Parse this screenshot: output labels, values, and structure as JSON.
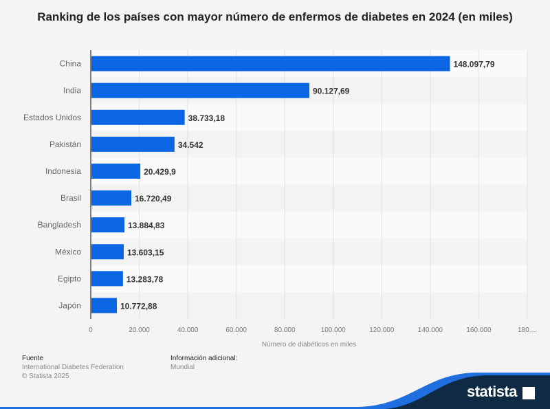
{
  "chart_data": {
    "type": "bar",
    "orientation": "horizontal",
    "title": "Ranking de los países con mayor número de enfermos de diabetes en 2024 (en miles)",
    "xlabel": "Número de diabéticos en miles",
    "ylabel": "",
    "categories": [
      "China",
      "India",
      "Estados Unidos",
      "Pakistán",
      "Indonesia",
      "Brasil",
      "Bangladesh",
      "México",
      "Egipto",
      "Japón"
    ],
    "values": [
      148097.79,
      90127.69,
      38733.18,
      34542,
      20429.9,
      16720.49,
      13884.83,
      13603.15,
      13283.78,
      10772.88
    ],
    "value_labels": [
      "148.097,79",
      "90.127,69",
      "38.733,18",
      "34.542",
      "20.429,9",
      "16.720,49",
      "13.884,83",
      "13.603,15",
      "13.283,78",
      "10.772,88"
    ],
    "xlim": [
      0,
      180000
    ],
    "ticks": [
      0,
      20000,
      40000,
      60000,
      80000,
      100000,
      120000,
      140000,
      160000,
      180000
    ],
    "tick_labels": [
      "0",
      "20.000",
      "40.000",
      "60.000",
      "80.000",
      "100.000",
      "120.000",
      "140.000",
      "160.000",
      "180...."
    ],
    "grid": true,
    "bar_color": "#0b66e4"
  },
  "footer": {
    "source_heading": "Fuente",
    "source": "International Diabetes Federation",
    "copyright": "© Statista 2025",
    "info_heading": "Información adicional:",
    "info": "Mundial"
  },
  "brand": {
    "name": "statista",
    "dark": "#0f2a43",
    "accent": "#1f6fe0"
  }
}
